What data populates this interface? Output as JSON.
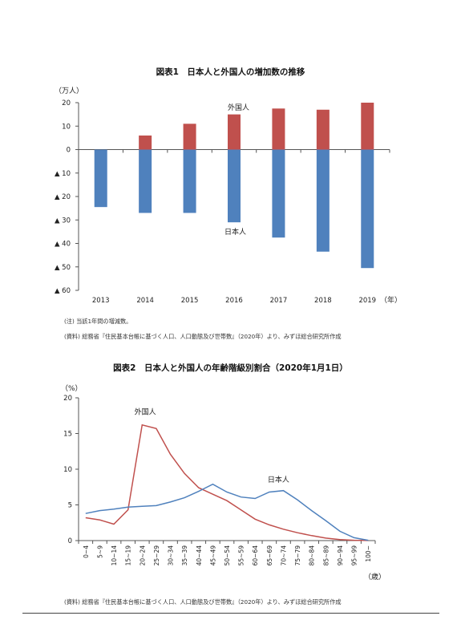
{
  "figure1": {
    "title": "図表1　日本人と外国人の増加数の推移",
    "notes": [
      "(注)  当該1年間の増減数。",
      "(資料)  総務省『住民基本台帳に基づく人口、人口動態及び世帯数』（2020年）より、みずほ総合研究所作成"
    ]
  },
  "figure2": {
    "title": "図表2　日本人と外国人の年齢階級別割合（2020年1月1日）",
    "notes": [
      "(資料)  総務省『住民基本台帳に基づく人口、人口動態及び世帯数』（2020年）より、みずほ総合研究所作成"
    ]
  },
  "chart_data": [
    {
      "type": "bar",
      "title": "図表1　日本人と外国人の増加数の推移",
      "ylabel": "（万人）",
      "xlabel": "（年）",
      "categories": [
        "2013",
        "2014",
        "2015",
        "2016",
        "2017",
        "2018",
        "2019"
      ],
      "series": [
        {
          "name": "外国人",
          "color": "#c0504d",
          "values": [
            -0.2,
            6,
            11,
            15,
            17.5,
            17,
            20
          ]
        },
        {
          "name": "日本人",
          "color": "#4f81bd",
          "values": [
            -24.5,
            -27,
            -27,
            -31,
            -37.5,
            -43.5,
            -50.5
          ]
        }
      ],
      "yticks": [
        20,
        10,
        0,
        -10,
        -20,
        -30,
        -40,
        -50,
        -60
      ],
      "ytick_labels": [
        "20",
        "10",
        "0",
        "▲ 10",
        "▲ 20",
        "▲ 30",
        "▲ 40",
        "▲ 50",
        "▲ 60"
      ],
      "ylim": [
        -60,
        20
      ],
      "grid": false
    },
    {
      "type": "line",
      "title": "図表2　日本人と外国人の年齢階級別割合（2020年1月1日）",
      "ylabel": "（%）",
      "xlabel": "（歳）",
      "categories": [
        "0~4",
        "5~9",
        "10~14",
        "15~19",
        "20~24",
        "25~29",
        "30~34",
        "35~39",
        "40~44",
        "45~49",
        "50~54",
        "55~59",
        "60~64",
        "65~69",
        "70~74",
        "75~79",
        "80~84",
        "85~89",
        "90~94",
        "95~99",
        "100~"
      ],
      "series": [
        {
          "name": "外国人",
          "color": "#c0504d",
          "values": [
            3.2,
            2.9,
            2.3,
            4.3,
            16.2,
            15.7,
            12.1,
            9.4,
            7.4,
            6.5,
            5.6,
            4.3,
            3.0,
            2.2,
            1.6,
            1.1,
            0.7,
            0.35,
            0.15,
            0.05,
            0.01
          ]
        },
        {
          "name": "日本人",
          "color": "#4f81bd",
          "values": [
            3.8,
            4.2,
            4.4,
            4.7,
            4.8,
            4.9,
            5.4,
            6.0,
            6.9,
            7.9,
            6.8,
            6.1,
            5.9,
            6.8,
            7.0,
            5.7,
            4.2,
            2.8,
            1.3,
            0.4,
            0.05
          ]
        }
      ],
      "yticks": [
        0,
        5,
        10,
        15,
        20
      ],
      "ylim": [
        0,
        20
      ],
      "grid": false
    }
  ]
}
